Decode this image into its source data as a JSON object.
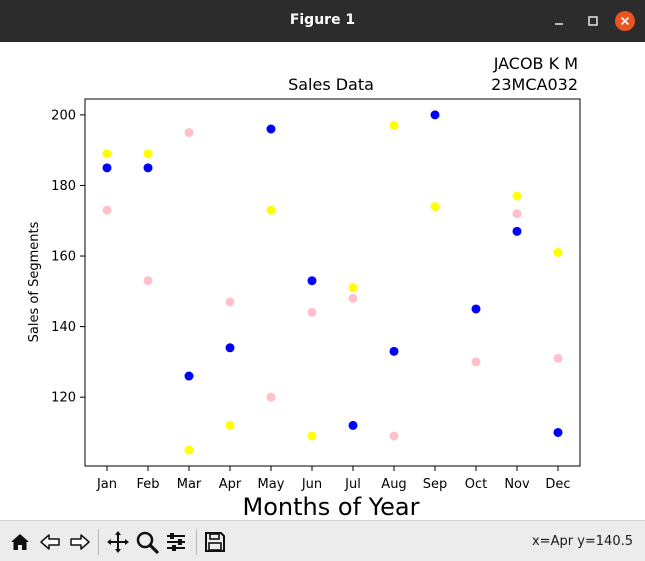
{
  "window": {
    "title": "Figure 1"
  },
  "toolbar": {
    "buttons": [
      {
        "name": "home-icon",
        "tooltip": "Reset original view"
      },
      {
        "name": "back-icon",
        "tooltip": "Back"
      },
      {
        "name": "forward-icon",
        "tooltip": "Forward"
      },
      {
        "name": "pan-icon",
        "tooltip": "Pan"
      },
      {
        "name": "zoom-icon",
        "tooltip": "Zoom"
      },
      {
        "name": "configure-subplots-icon",
        "tooltip": "Configure subplots"
      },
      {
        "name": "save-icon",
        "tooltip": "Save"
      }
    ],
    "coords": "x=Apr y=140.5"
  },
  "chart_data": {
    "type": "scatter",
    "title": "Sales Data",
    "title_right": [
      "JACOB K M",
      "23MCA032"
    ],
    "xlabel": "Months of Year",
    "ylabel": "Sales of Segments",
    "categories": [
      "Jan",
      "Feb",
      "Mar",
      "Apr",
      "May",
      "Jun",
      "Jul",
      "Aug",
      "Sep",
      "Oct",
      "Nov",
      "Dec"
    ],
    "ylim": [
      100.5,
      204.5
    ],
    "yticks": [
      120,
      140,
      160,
      180,
      200
    ],
    "grid": false,
    "series": [
      {
        "color": "#0000ff",
        "values": [
          185,
          185,
          126,
          134,
          196,
          153,
          112,
          133,
          200,
          145,
          167,
          110
        ]
      },
      {
        "color": "#ffff00",
        "values": [
          189,
          189,
          105,
          112,
          173,
          109,
          151,
          197,
          174,
          null,
          177,
          161
        ]
      },
      {
        "color": "#ffc0cb",
        "values": [
          173,
          153,
          195,
          147,
          120,
          144,
          148,
          109,
          null,
          130,
          172,
          131
        ]
      }
    ]
  }
}
